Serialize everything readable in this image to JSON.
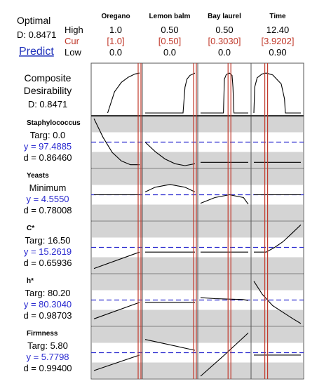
{
  "header": {
    "optimal_label": "Optimal",
    "d_overall": "D: 0.8471",
    "predict_label": "Predict",
    "row_high": "High",
    "row_cur": "Cur",
    "row_low": "Low"
  },
  "factors": [
    {
      "name": "Oregano",
      "high": "1.0",
      "cur": "[1.0]",
      "low": "0.0"
    },
    {
      "name": "Lemon balm",
      "high": "0.50",
      "cur": "[0.50]",
      "low": "0.0"
    },
    {
      "name": "Bay laurel",
      "high": "0.50",
      "cur": "[0.3030]",
      "low": "0.0"
    },
    {
      "name": "Time",
      "high": "12.40",
      "cur": "[3.9202]",
      "low": "0.90"
    }
  ],
  "composite": {
    "line1": "Composite",
    "line2": "Desirability",
    "d": "D: 0.8471"
  },
  "responses": [
    {
      "name": "Staphylococcus",
      "goal": "Targ: 0.0",
      "y": "y = 97.4885",
      "d": "d = 0.86460"
    },
    {
      "name": "Yeasts",
      "goal": "Minimum",
      "y": "y = 4.5550",
      "d": "d = 0.78008"
    },
    {
      "name": "C*",
      "goal": "Targ: 16.50",
      "y": "y = 15.2619",
      "d": "d = 0.65936"
    },
    {
      "name": "h*",
      "goal": "Targ: 80.20",
      "y": "y = 80.3040",
      "d": "d = 0.98703"
    },
    {
      "name": "Firmness",
      "goal": "Targ: 5.80",
      "y": "y = 5.7798",
      "d": "d = 0.99400"
    }
  ],
  "colors": {
    "frame": "#555555",
    "band": "#d4d4d4",
    "curve": "#000000",
    "current_line": "#c0392b",
    "current_line_inner": "#f2b8b0",
    "hline": "#2b2bcf",
    "blue_text": "#2a2ad0",
    "red_text": "#c0392b",
    "link": "#2233bb"
  },
  "chart_data": {
    "type": "line",
    "title": "",
    "x_factors": [
      "Oregano",
      "Lemon balm",
      "Bay laurel",
      "Time"
    ],
    "x_ranges": [
      [
        0.0,
        1.0
      ],
      [
        0.0,
        0.5
      ],
      [
        0.0,
        0.5
      ],
      [
        0.9,
        12.4
      ]
    ],
    "x_current": [
      1.0,
      0.5,
      0.303,
      3.9202
    ],
    "composite_desirability": {
      "value": 0.8471,
      "curves": [
        {
          "x": [
            0.3,
            0.45,
            0.6,
            0.75,
            0.9,
            1.0
          ],
          "y": [
            0.0,
            0.45,
            0.65,
            0.76,
            0.83,
            0.85
          ]
        },
        {
          "x": [
            0.0,
            0.38,
            0.4,
            0.42,
            0.45,
            0.5
          ],
          "y": [
            0.0,
            0.0,
            0.55,
            0.72,
            0.8,
            0.85
          ]
        },
        {
          "x": [
            0.0,
            0.24,
            0.25,
            0.27,
            0.303,
            0.33,
            0.34,
            0.35,
            0.5
          ],
          "y": [
            0.0,
            0.0,
            0.72,
            0.82,
            0.85,
            0.8,
            0.55,
            0.0,
            0.0
          ]
        },
        {
          "x": [
            0.9,
            1.1,
            1.7,
            2.9,
            3.9202,
            5.5,
            7.6,
            8.4,
            8.6,
            12.4
          ],
          "y": [
            0.0,
            0.55,
            0.75,
            0.83,
            0.85,
            0.81,
            0.62,
            0.3,
            0.0,
            0.0
          ]
        }
      ]
    },
    "response_curves": [
      {
        "name": "Staphylococcus",
        "hline": 97.4885,
        "curves": [
          {
            "x": [
              0.0,
              0.2,
              0.4,
              0.6,
              0.8,
              1.0
            ],
            "y": [
              1.0,
              0.6,
              0.28,
              0.1,
              0.02,
              0.02
            ]
          },
          {
            "x": [
              0.0,
              0.1,
              0.2,
              0.3,
              0.4,
              0.5
            ],
            "y": [
              0.5,
              0.3,
              0.14,
              0.04,
              0.0,
              0.04
            ]
          },
          {
            "x": [
              0.0,
              0.5
            ],
            "y": [
              0.07,
              0.07
            ]
          },
          {
            "x": [
              0.9,
              12.4
            ],
            "y": [
              0.07,
              0.07
            ]
          }
        ]
      },
      {
        "name": "Yeasts",
        "hline": 4.555,
        "curves": [
          {
            "x": [
              0.0,
              1.0
            ],
            "y": [
              0.5,
              0.5
            ]
          },
          {
            "x": [
              0.0,
              0.1,
              0.25,
              0.4,
              0.5
            ],
            "y": [
              0.56,
              0.66,
              0.72,
              0.66,
              0.56
            ]
          },
          {
            "x": [
              0.0,
              0.15,
              0.303,
              0.45,
              0.5
            ],
            "y": [
              0.32,
              0.44,
              0.5,
              0.44,
              0.3
            ]
          },
          {
            "x": [
              0.9,
              12.4
            ],
            "y": [
              0.5,
              0.5
            ]
          }
        ]
      },
      {
        "name": "C*",
        "hline": 15.2619,
        "curves": [
          {
            "x": [
              0.0,
              1.0
            ],
            "y": [
              0.05,
              0.4
            ]
          },
          {
            "x": [
              0.0,
              0.5
            ],
            "y": [
              0.4,
              0.4
            ]
          },
          {
            "x": [
              0.0,
              0.5
            ],
            "y": [
              0.4,
              0.4
            ]
          },
          {
            "x": [
              0.9,
              3.9202,
              6.0,
              8.0,
              10.0,
              12.4
            ],
            "y": [
              0.4,
              0.4,
              0.5,
              0.62,
              0.78,
              0.98
            ]
          }
        ]
      },
      {
        "name": "h*",
        "hline": 80.304,
        "curves": [
          {
            "x": [
              0.0,
              1.0
            ],
            "y": [
              0.1,
              0.45
            ]
          },
          {
            "x": [
              0.0,
              0.5
            ],
            "y": [
              0.45,
              0.45
            ]
          },
          {
            "x": [
              0.0,
              0.15,
              0.3,
              0.45,
              0.5
            ],
            "y": [
              0.55,
              0.53,
              0.52,
              0.51,
              0.49
            ]
          },
          {
            "x": [
              0.9,
              3.0,
              5.5,
              8.0,
              10.5,
              12.4
            ],
            "y": [
              0.9,
              0.62,
              0.38,
              0.24,
              0.1,
              0.0
            ]
          }
        ]
      },
      {
        "name": "Firmness",
        "hline": 5.7798,
        "curves": [
          {
            "x": [
              0.0,
              1.0
            ],
            "y": [
              0.12,
              0.45
            ]
          },
          {
            "x": [
              0.0,
              0.5
            ],
            "y": [
              0.78,
              0.55
            ]
          },
          {
            "x": [
              0.0,
              0.25,
              0.5
            ],
            "y": [
              0.0,
              0.45,
              0.92
            ]
          },
          {
            "x": [
              0.9,
              12.4
            ],
            "y": [
              0.45,
              0.45
            ]
          }
        ]
      }
    ]
  }
}
